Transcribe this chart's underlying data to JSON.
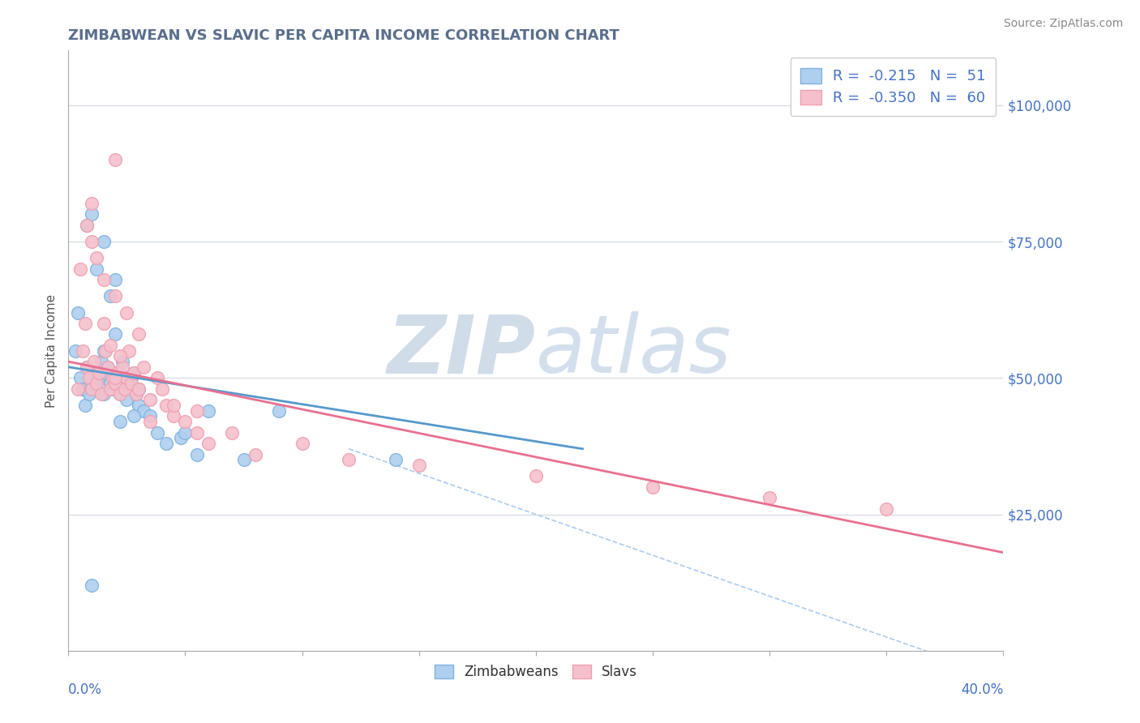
{
  "title": "ZIMBABWEAN VS SLAVIC PER CAPITA INCOME CORRELATION CHART",
  "source": "Source: ZipAtlas.com",
  "ylabel": "Per Capita Income",
  "yticks": [
    0,
    25000,
    50000,
    75000,
    100000
  ],
  "ytick_labels": [
    "",
    "$25,000",
    "$50,000",
    "$75,000",
    "$100,000"
  ],
  "xlim": [
    0.0,
    40.0
  ],
  "ylim": [
    0,
    110000
  ],
  "background_color": "#ffffff",
  "grid_color": "#d0d8e4",
  "title_color": "#5a6e8c",
  "watermark_zip": "ZIP",
  "watermark_atlas": "atlas",
  "watermark_color": "#d0dce8",
  "series": [
    {
      "name": "Zimbabweans",
      "color": "#7fb3e0",
      "fill_color": "#aecfee",
      "R": -0.215,
      "N": 51,
      "trend_color": "#5599cc",
      "points_x": [
        0.3,
        0.4,
        0.5,
        0.6,
        0.7,
        0.8,
        0.9,
        1.0,
        1.1,
        1.2,
        1.3,
        1.4,
        1.5,
        1.6,
        1.7,
        1.8,
        1.9,
        2.0,
        2.1,
        2.2,
        2.3,
        2.4,
        2.5,
        2.6,
        2.7,
        2.8,
        2.9,
        3.0,
        3.2,
        3.5,
        3.8,
        4.2,
        4.8,
        5.5,
        6.0,
        7.5,
        9.0,
        14.0,
        1.5,
        2.0,
        1.0,
        0.8,
        1.2,
        1.8,
        2.2,
        3.0,
        1.5,
        2.0,
        1.0,
        2.8,
        5.0
      ],
      "points_y": [
        55000,
        62000,
        50000,
        48000,
        45000,
        52000,
        47000,
        49000,
        51000,
        48000,
        50000,
        53000,
        47000,
        51000,
        52000,
        49000,
        48000,
        50000,
        51000,
        47000,
        53000,
        48000,
        46000,
        49000,
        50000,
        51000,
        47000,
        45000,
        44000,
        43000,
        40000,
        38000,
        39000,
        36000,
        44000,
        35000,
        44000,
        35000,
        75000,
        68000,
        80000,
        78000,
        70000,
        65000,
        42000,
        48000,
        55000,
        58000,
        12000,
        43000,
        40000
      ],
      "trend_x": [
        0.0,
        22.0
      ],
      "trend_y": [
        52000,
        37000
      ]
    },
    {
      "name": "Slavs",
      "color": "#f0a0b0",
      "fill_color": "#f5c0cc",
      "R": -0.35,
      "N": 60,
      "trend_color": "#e87090",
      "points_x": [
        0.4,
        0.5,
        0.6,
        0.7,
        0.8,
        0.9,
        1.0,
        1.1,
        1.2,
        1.3,
        1.4,
        1.5,
        1.6,
        1.7,
        1.8,
        1.9,
        2.0,
        2.1,
        2.2,
        2.3,
        2.4,
        2.5,
        2.6,
        2.7,
        2.8,
        2.9,
        3.0,
        3.2,
        3.5,
        3.8,
        4.2,
        4.5,
        5.0,
        5.5,
        6.0,
        7.0,
        8.0,
        10.0,
        12.0,
        15.0,
        20.0,
        25.0,
        30.0,
        35.0,
        1.0,
        1.5,
        2.0,
        2.5,
        1.2,
        0.8,
        3.0,
        2.2,
        1.8,
        4.0,
        4.5,
        2.0,
        3.5,
        5.5,
        1.0,
        2.0
      ],
      "points_y": [
        48000,
        70000,
        55000,
        60000,
        52000,
        50000,
        48000,
        53000,
        49000,
        51000,
        47000,
        60000,
        55000,
        52000,
        48000,
        50000,
        49000,
        51000,
        47000,
        52000,
        48000,
        50000,
        55000,
        49000,
        51000,
        47000,
        48000,
        52000,
        46000,
        50000,
        45000,
        43000,
        42000,
        44000,
        38000,
        40000,
        36000,
        38000,
        35000,
        34000,
        32000,
        30000,
        28000,
        26000,
        75000,
        68000,
        65000,
        62000,
        72000,
        78000,
        58000,
        54000,
        56000,
        48000,
        45000,
        50000,
        42000,
        40000,
        82000,
        90000
      ],
      "trend_x": [
        0.0,
        40.0
      ],
      "trend_y": [
        53000,
        18000
      ]
    }
  ],
  "dashed_line": {
    "x": [
      12.0,
      42.0
    ],
    "y": [
      37000,
      -8000
    ],
    "color": "#aaccee"
  },
  "legend_text_color": "#4472c4",
  "legend_fontsize": 13
}
